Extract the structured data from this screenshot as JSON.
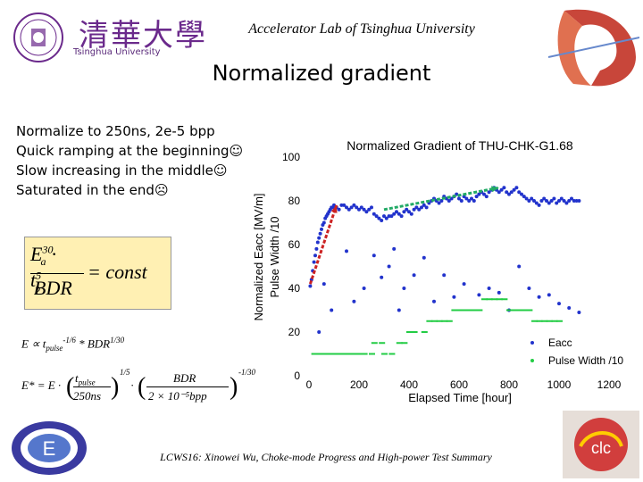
{
  "header": {
    "title": "Accelerator Lab of Tsinghua University",
    "university_cn": "清華大學",
    "university_en": "Tsinghua University"
  },
  "slide": {
    "title": "Normalized gradient",
    "bullets": [
      "Normalize to 250ns, 2e-5 bpp",
      "Quick ramping at the beginning☺",
      "Slow increasing in the middle☺",
      "Saturated in the end☹"
    ]
  },
  "formulas": {
    "main": {
      "lhs_top": "E",
      "lhs_top_sup": "30",
      "lhs_top_sub": "a",
      "dot": "·",
      "t": "t",
      "t_sup": "5",
      "t_sub": "p",
      "denominator": "BDR",
      "rhs": "= const"
    },
    "prop": "E ∝ t",
    "prop_sub": "pulse",
    "prop_exp": "-1/6",
    "prop_rest": "* BDR",
    "prop_rest_exp": "1/30",
    "norm": "E* = E ·",
    "norm_frac1_top": "t",
    "norm_frac1_top_sub": "pulse",
    "norm_frac1_bot": "250ns",
    "norm_exp1": "1/5",
    "norm_dot": "·",
    "norm_frac2_top": "BDR",
    "norm_frac2_bot": "2 × 10⁻⁵bpp",
    "norm_exp2": "-1/30"
  },
  "chart_data": {
    "type": "scatter",
    "title": "Normalized Gradient of THU-CHK-G1.68",
    "xlabel": "Elapsed Time [hour]",
    "ylabel": "Normalized Eacc [MV/m]",
    "ylabel2": "Pulse Width /10",
    "xlim": [
      0,
      1300
    ],
    "ylim": [
      0,
      100
    ],
    "xticks": [
      "0",
      "200",
      "400",
      "600",
      "800",
      "1000",
      "1200"
    ],
    "yticks": [
      "0",
      "20",
      "40",
      "60",
      "80",
      "100"
    ],
    "legend_position": "bottom-right",
    "series": [
      {
        "name": "Eacc",
        "color": "#2233cc",
        "x": [
          5,
          10,
          15,
          20,
          25,
          30,
          35,
          40,
          45,
          50,
          55,
          60,
          65,
          70,
          75,
          80,
          85,
          90,
          95,
          100,
          110,
          120,
          130,
          140,
          150,
          160,
          170,
          180,
          190,
          200,
          210,
          220,
          230,
          240,
          250,
          260,
          270,
          280,
          290,
          300,
          310,
          320,
          330,
          340,
          350,
          360,
          370,
          380,
          390,
          400,
          410,
          420,
          430,
          440,
          450,
          460,
          470,
          480,
          490,
          500,
          510,
          520,
          530,
          540,
          550,
          560,
          570,
          580,
          590,
          600,
          610,
          620,
          630,
          640,
          650,
          660,
          670,
          680,
          690,
          700,
          710,
          720,
          730,
          740,
          750,
          760,
          770,
          780,
          790,
          800,
          810,
          820,
          830,
          840,
          850,
          860,
          870,
          880,
          890,
          900,
          910,
          920,
          930,
          940,
          950,
          960,
          970,
          980,
          990,
          1000,
          1010,
          1020,
          1030,
          1040,
          1050,
          1060,
          1070,
          1080,
          40,
          60,
          90,
          150,
          180,
          220,
          260,
          290,
          320,
          340,
          360,
          380,
          420,
          460,
          500,
          540,
          580,
          620,
          680,
          720,
          760,
          800,
          840,
          880,
          920,
          960,
          1000,
          1040,
          1080
        ],
        "y": [
          41,
          44,
          48,
          52,
          55,
          58,
          61,
          63,
          65,
          67,
          69,
          70,
          72,
          73,
          74,
          75,
          76,
          77,
          77,
          78,
          77,
          76,
          78,
          78,
          77,
          76,
          77,
          78,
          77,
          76,
          77,
          76,
          75,
          76,
          77,
          74,
          73,
          72,
          71,
          73,
          72,
          73,
          73,
          74,
          75,
          74,
          73,
          75,
          76,
          75,
          74,
          76,
          77,
          76,
          77,
          78,
          77,
          79,
          80,
          81,
          80,
          79,
          80,
          82,
          81,
          80,
          81,
          82,
          83,
          81,
          80,
          82,
          81,
          80,
          81,
          80,
          82,
          83,
          84,
          83,
          82,
          84,
          85,
          86,
          85,
          84,
          85,
          86,
          84,
          83,
          84,
          85,
          86,
          84,
          83,
          82,
          81,
          80,
          81,
          80,
          79,
          78,
          80,
          81,
          80,
          79,
          80,
          81,
          79,
          80,
          81,
          80,
          79,
          80,
          81,
          80,
          80,
          80,
          20,
          42,
          30,
          57,
          34,
          40,
          55,
          45,
          50,
          58,
          30,
          40,
          46,
          54,
          34,
          46,
          36,
          42,
          37,
          40,
          38,
          30,
          50,
          40,
          36,
          37,
          33,
          31,
          29
        ]
      },
      {
        "name": "Pulse Width /10",
        "color": "#22cc44",
        "x": [
          20,
          40,
          60,
          80,
          100,
          120,
          140,
          160,
          180,
          200,
          220,
          250,
          260,
          290,
          300,
          330,
          360,
          380,
          400,
          420,
          460,
          480,
          500,
          520,
          540,
          560,
          580,
          600,
          620,
          640,
          660,
          680,
          700,
          720,
          740,
          760,
          780,
          800,
          820,
          840,
          860,
          880,
          900,
          920,
          940,
          960,
          980,
          1000
        ],
        "y": [
          10,
          10,
          10,
          10,
          10,
          10,
          10,
          10,
          10,
          10,
          10,
          10,
          15,
          15,
          10,
          10,
          15,
          15,
          20,
          20,
          20,
          25,
          25,
          25,
          25,
          25,
          30,
          30,
          30,
          30,
          30,
          30,
          35,
          35,
          35,
          35,
          35,
          30,
          30,
          30,
          30,
          30,
          25,
          25,
          25,
          25,
          25,
          25
        ]
      }
    ],
    "annotations": [
      {
        "type": "arrow",
        "color": "#cc2222",
        "x1": 5,
        "y1": 42,
        "x2": 110,
        "y2": 78
      },
      {
        "type": "arrow",
        "color": "#22aa66",
        "x1": 300,
        "y1": 76,
        "x2": 760,
        "y2": 86
      }
    ]
  },
  "footer": {
    "text": "LCWS16: Xinowei Wu, Choke-mode Progress and High-power Test Summary"
  }
}
